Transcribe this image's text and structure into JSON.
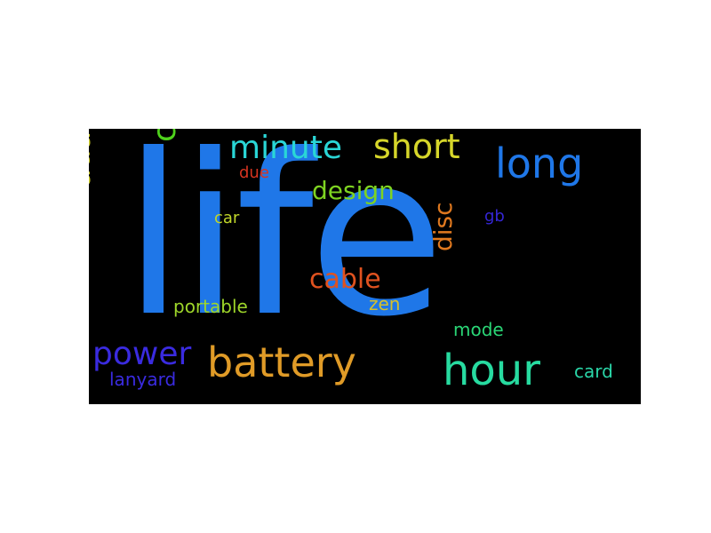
{
  "words": [
    {
      "id": "life",
      "text": "life",
      "color": "#1f77e8"
    },
    {
      "id": "battery",
      "text": "battery",
      "color": "#e09b27"
    },
    {
      "id": "hour",
      "text": "hour",
      "color": "#27dba0"
    },
    {
      "id": "long",
      "text": "long",
      "color": "#1f77e8"
    },
    {
      "id": "short",
      "text": "short",
      "color": "#d6d62a"
    },
    {
      "id": "minute",
      "text": "minute",
      "color": "#2ad6d6"
    },
    {
      "id": "charger",
      "text": "charger",
      "color": "#4fd21c"
    },
    {
      "id": "adapter",
      "text": "adapter",
      "color": "#d6d62a"
    },
    {
      "id": "power",
      "text": "power",
      "color": "#3a2be0"
    },
    {
      "id": "design",
      "text": "design",
      "color": "#7ed321"
    },
    {
      "id": "cable",
      "text": "cable",
      "color": "#e0521f"
    },
    {
      "id": "disc",
      "text": "disc",
      "color": "#e0791f"
    },
    {
      "id": "due",
      "text": "due",
      "color": "#d63420"
    },
    {
      "id": "car",
      "text": "car",
      "color": "#c0d62a"
    },
    {
      "id": "gb",
      "text": "gb",
      "color": "#3526d6"
    },
    {
      "id": "portable",
      "text": "portable",
      "color": "#9ed62a"
    },
    {
      "id": "zen",
      "text": "zen",
      "color": "#d6c02a"
    },
    {
      "id": "mode",
      "text": "mode",
      "color": "#2ad676"
    },
    {
      "id": "card",
      "text": "card",
      "color": "#2ad6a8"
    },
    {
      "id": "lanyard",
      "text": "lanyard",
      "color": "#3a2be0"
    }
  ]
}
